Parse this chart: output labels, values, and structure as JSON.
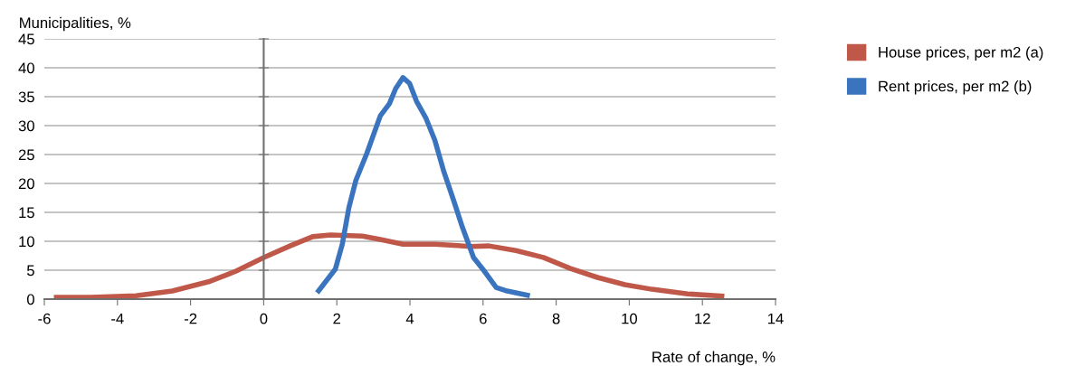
{
  "chart_data": {
    "type": "line",
    "xlabel": "Rate of change, %",
    "ylabel": "Municipalities, %",
    "xlim": [
      -6,
      14
    ],
    "xticks": [
      -6,
      -4,
      -2,
      0,
      2,
      4,
      6,
      8,
      10,
      12,
      14
    ],
    "ylim": [
      0,
      45
    ],
    "yticks": [
      0,
      5,
      10,
      15,
      20,
      25,
      30,
      35,
      40,
      45
    ],
    "grid": "y",
    "legend": "top right",
    "marker": "none",
    "line_style": "solid",
    "series": [
      {
        "name": "House prices, per m2 (a)",
        "color": "#c0584a",
        "x": [
          -5.74,
          -4.73,
          -3.49,
          -2.5,
          -1.51,
          -0.77,
          0,
          0.72,
          1.34,
          1.83,
          2.7,
          3.19,
          3.81,
          4.68,
          5.67,
          6.16,
          6.9,
          7.65,
          8.39,
          9.13,
          9.88,
          10.62,
          11.6,
          12.6
        ],
        "values": [
          0.3,
          0.3,
          0.6,
          1.4,
          3,
          4.8,
          7.2,
          9.2,
          10.8,
          11.1,
          10.9,
          10.3,
          9.5,
          9.5,
          9.1,
          9.2,
          8.4,
          7.2,
          5.3,
          3.75,
          2.5,
          1.7,
          0.9,
          0.5
        ]
      },
      {
        "name": "Rent prices, per m2 (b)",
        "color": "#3a74be",
        "x": [
          1.46,
          1.96,
          2.15,
          2.33,
          2.52,
          2.82,
          3.19,
          3.44,
          3.61,
          3.81,
          3.99,
          4.18,
          4.43,
          4.68,
          4.93,
          5.22,
          5.42,
          5.74,
          6.04,
          6.36,
          6.66,
          7.28
        ],
        "values": [
          1.1,
          5.2,
          9.5,
          15.8,
          20.5,
          25.2,
          31.7,
          33.8,
          36.4,
          38.3,
          37.3,
          34.2,
          31.4,
          27.5,
          22,
          16.6,
          12.7,
          7.2,
          4.8,
          2,
          1.4,
          0.6
        ]
      }
    ]
  }
}
